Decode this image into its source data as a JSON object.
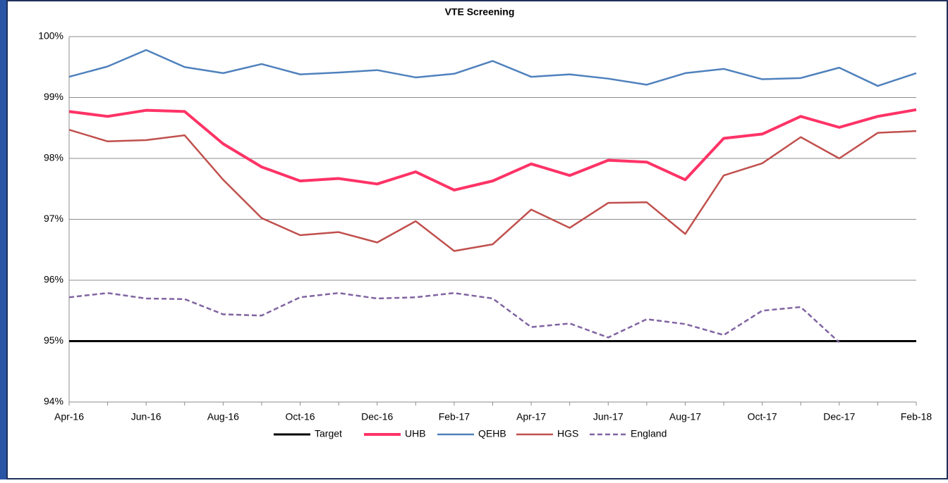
{
  "chart_data": {
    "type": "line",
    "title": "VTE Screening",
    "categories": [
      "Apr-16",
      null,
      "Jun-16",
      null,
      "Aug-16",
      null,
      "Oct-16",
      null,
      "Dec-16",
      null,
      "Feb-17",
      null,
      "Apr-17",
      null,
      "Jun-17",
      null,
      "Aug-17",
      null,
      "Oct-17",
      null,
      "Dec-17",
      null,
      "Feb-18"
    ],
    "series": [
      {
        "name": "Target",
        "color": "#000000",
        "width": 3,
        "dash": false,
        "values": [
          95,
          95,
          95,
          95,
          95,
          95,
          95,
          95,
          95,
          95,
          95,
          95,
          95,
          95,
          95,
          95,
          95,
          95,
          95,
          95,
          95,
          95,
          95
        ]
      },
      {
        "name": "UHB",
        "color": "#ff3366",
        "width": 4,
        "dash": false,
        "values": [
          98.77,
          98.69,
          98.79,
          98.77,
          98.24,
          97.86,
          97.63,
          97.67,
          97.58,
          97.78,
          97.48,
          97.63,
          97.91,
          97.72,
          97.97,
          97.94,
          97.65,
          98.33,
          98.4,
          98.69,
          98.51,
          98.69,
          98.8
        ]
      },
      {
        "name": "QEHB",
        "color": "#4f81bd",
        "width": 2.5,
        "dash": false,
        "values": [
          99.34,
          99.51,
          99.78,
          99.5,
          99.4,
          99.55,
          99.38,
          99.41,
          99.45,
          99.33,
          99.39,
          99.6,
          99.34,
          99.38,
          99.31,
          99.21,
          99.4,
          99.47,
          99.3,
          99.32,
          99.49,
          99.19,
          99.4
        ]
      },
      {
        "name": "HGS",
        "color": "#c0504d",
        "width": 2.5,
        "dash": false,
        "values": [
          98.47,
          98.28,
          98.3,
          98.38,
          97.65,
          97.02,
          96.74,
          96.79,
          96.62,
          96.97,
          96.48,
          96.59,
          97.16,
          96.86,
          97.27,
          97.28,
          96.76,
          97.72,
          97.92,
          98.35,
          98.0,
          98.42,
          98.45
        ]
      },
      {
        "name": "England",
        "color": "#8064a2",
        "width": 2.5,
        "dash": true,
        "values": [
          95.72,
          95.79,
          95.7,
          95.69,
          95.44,
          95.42,
          95.72,
          95.79,
          95.7,
          95.72,
          95.79,
          95.7,
          95.23,
          95.29,
          95.06,
          95.36,
          95.28,
          95.1,
          95.5,
          95.56,
          94.98,
          null,
          null
        ]
      }
    ],
    "ylim": [
      94,
      100
    ],
    "yticks": [
      {
        "value": 94,
        "label": "94%"
      },
      {
        "value": 95,
        "label": "95%"
      },
      {
        "value": 96,
        "label": "96%"
      },
      {
        "value": 97,
        "label": "97%"
      },
      {
        "value": 98,
        "label": "98%"
      },
      {
        "value": 99,
        "label": "99%"
      },
      {
        "value": 100,
        "label": "100%"
      }
    ],
    "grid": true,
    "legend": "bottom"
  }
}
